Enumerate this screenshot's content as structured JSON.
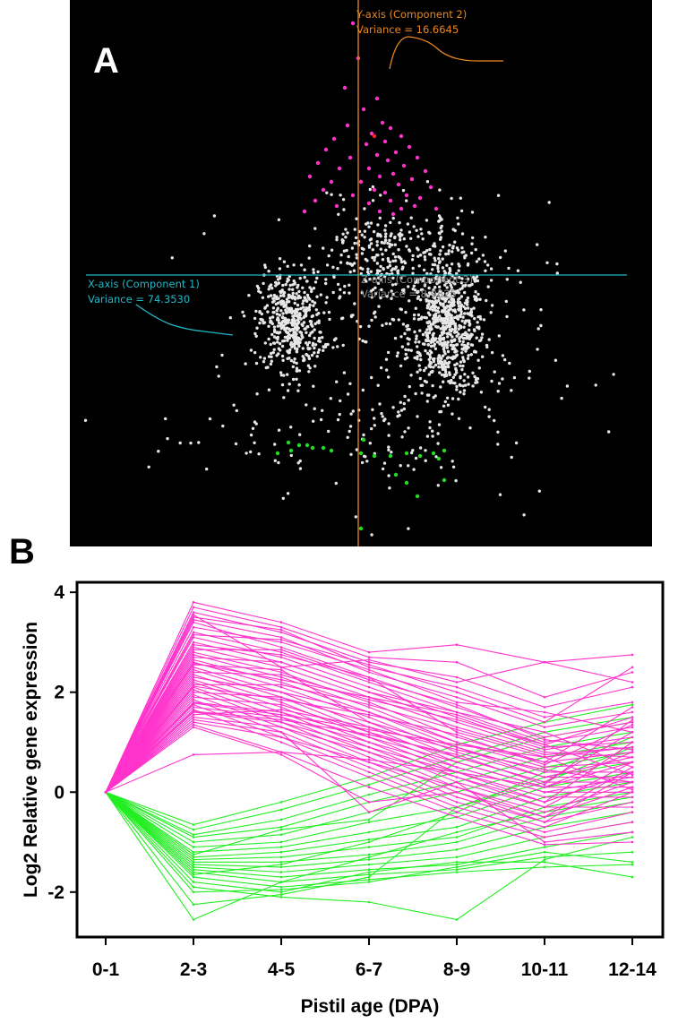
{
  "figure": {
    "panel_a_letter": "A",
    "panel_b_letter": "B"
  },
  "chart_data": [
    {
      "type": "scatter",
      "panel": "A",
      "y_axis_label": "Y-axis (Component 2)",
      "y_axis_variance": "Variance = 16.6645",
      "x_axis_label": "X-axis (Component 1)",
      "x_axis_variance": "Variance = 74.3530",
      "z_axis_label": "Z-axis (Component 3)",
      "z_axis_variance": "Variance = 8.9825",
      "background": "#000000",
      "colors": {
        "background_points": "#e6e6e6",
        "up_cluster": "#ff33cc",
        "down_cluster": "#22dd22",
        "highlight": "#ff2222",
        "y_axis": "#e8871e",
        "x_axis": "#22b8c8",
        "z_axis": "#888888"
      },
      "series": [
        {
          "name": "",
          "color": "#ff33cc",
          "points": [
            [
              -0.02,
              0.93
            ],
            [
              0.0,
              0.8
            ],
            [
              -0.05,
              0.69
            ],
            [
              0.07,
              0.65
            ],
            [
              0.02,
              0.61
            ],
            [
              0.09,
              0.56
            ],
            [
              -0.04,
              0.55
            ],
            [
              0.12,
              0.54
            ],
            [
              0.05,
              0.52
            ],
            [
              0.16,
              0.51
            ],
            [
              -0.09,
              0.5
            ],
            [
              0.1,
              0.49
            ],
            [
              0.03,
              0.48
            ],
            [
              0.19,
              0.47
            ],
            [
              -0.12,
              0.46
            ],
            [
              0.14,
              0.45
            ],
            [
              0.07,
              0.44
            ],
            [
              -0.03,
              0.43
            ],
            [
              0.22,
              0.43
            ],
            [
              0.11,
              0.42
            ],
            [
              -0.15,
              0.41
            ],
            [
              0.17,
              0.4
            ],
            [
              0.04,
              0.39
            ],
            [
              -0.07,
              0.39
            ],
            [
              0.25,
              0.38
            ],
            [
              0.13,
              0.37
            ],
            [
              0.08,
              0.36
            ],
            [
              -0.18,
              0.36
            ],
            [
              0.2,
              0.35
            ],
            [
              0.01,
              0.34
            ],
            [
              -0.1,
              0.34
            ],
            [
              0.15,
              0.33
            ],
            [
              0.27,
              0.32
            ],
            [
              0.06,
              0.31
            ],
            [
              -0.13,
              0.31
            ],
            [
              0.1,
              0.3
            ],
            [
              0.18,
              0.29
            ],
            [
              -0.02,
              0.29
            ],
            [
              0.23,
              0.28
            ],
            [
              -0.16,
              0.27
            ],
            [
              0.12,
              0.27
            ],
            [
              0.04,
              0.26
            ],
            [
              0.21,
              0.25
            ],
            [
              -0.08,
              0.25
            ],
            [
              0.16,
              0.24
            ],
            [
              0.29,
              0.24
            ],
            [
              -0.2,
              0.23
            ],
            [
              0.08,
              0.23
            ],
            [
              0.13,
              0.22
            ]
          ]
        },
        {
          "name": "",
          "color": "#22dd22",
          "points": [
            [
              -0.26,
              -0.63
            ],
            [
              -0.22,
              -0.64
            ],
            [
              -0.19,
              -0.64
            ],
            [
              -0.17,
              -0.65
            ],
            [
              -0.25,
              -0.66
            ],
            [
              -0.13,
              -0.65
            ],
            [
              -0.1,
              -0.66
            ],
            [
              0.02,
              -0.62
            ],
            [
              0.01,
              -0.67
            ],
            [
              0.06,
              -0.68
            ],
            [
              0.12,
              -0.68
            ],
            [
              0.18,
              -0.67
            ],
            [
              0.23,
              -0.68
            ],
            [
              0.28,
              -0.67
            ],
            [
              0.32,
              -0.66
            ],
            [
              0.3,
              -0.69
            ],
            [
              -0.3,
              -0.67
            ],
            [
              0.14,
              -0.75
            ],
            [
              0.18,
              -0.78
            ],
            [
              0.32,
              -0.77
            ],
            [
              0.22,
              -0.83
            ],
            [
              0.01,
              -0.95
            ]
          ]
        },
        {
          "name": "",
          "color": "#ff2222",
          "points": [
            [
              0.06,
              0.51
            ]
          ]
        }
      ]
    },
    {
      "type": "line",
      "panel": "B",
      "xlabel": "Pistil age (DPA)",
      "ylabel": "Log2 Relative gene expression",
      "categories": [
        "0-1",
        "2-3",
        "4-5",
        "6-7",
        "8-9",
        "10-11",
        "12-14"
      ],
      "ylim": [
        -2.9,
        4.2
      ],
      "yticks": [
        "-2",
        "0",
        "2",
        "4"
      ],
      "ytick_values": [
        -2,
        0,
        2,
        4
      ],
      "colors": {
        "up": "#ff33cc",
        "down": "#22ee22"
      },
      "up_series": [
        [
          0,
          3.8,
          3.4,
          2.8,
          2.95,
          2.6,
          2.75
        ],
        [
          0,
          3.7,
          3.3,
          2.7,
          2.6,
          1.9,
          2.4
        ],
        [
          0,
          3.6,
          3.2,
          2.6,
          2.3,
          1.7,
          2.1
        ],
        [
          0,
          3.5,
          3.25,
          2.5,
          2.1,
          1.5,
          1.8
        ],
        [
          0,
          3.45,
          3.1,
          2.4,
          1.9,
          1.3,
          1.6
        ],
        [
          0,
          3.4,
          2.9,
          2.3,
          1.7,
          1.1,
          1.4
        ],
        [
          0,
          3.3,
          3.0,
          2.45,
          1.8,
          1.6,
          1.2
        ],
        [
          0,
          3.2,
          2.8,
          2.2,
          1.6,
          1.0,
          1.3
        ],
        [
          0,
          3.1,
          2.7,
          2.1,
          1.5,
          0.9,
          1.0
        ],
        [
          0,
          3.0,
          2.6,
          2.0,
          1.4,
          0.85,
          1.1
        ],
        [
          0,
          2.95,
          2.75,
          2.3,
          1.2,
          0.7,
          0.9
        ],
        [
          0,
          2.9,
          2.5,
          1.9,
          1.3,
          0.8,
          0.7
        ],
        [
          0,
          2.8,
          2.4,
          1.8,
          1.1,
          0.6,
          0.8
        ],
        [
          0,
          2.75,
          2.3,
          1.7,
          1.0,
          0.5,
          0.6
        ],
        [
          0,
          2.7,
          2.6,
          2.0,
          1.6,
          1.2,
          0.5
        ],
        [
          0,
          2.65,
          2.2,
          1.6,
          0.9,
          0.4,
          0.4
        ],
        [
          0,
          2.6,
          2.1,
          1.5,
          0.8,
          0.3,
          0.3
        ],
        [
          0,
          2.55,
          2.45,
          1.4,
          0.7,
          0.2,
          0.2
        ],
        [
          0,
          2.5,
          2.0,
          1.3,
          0.6,
          0.1,
          0.1
        ],
        [
          0,
          2.45,
          1.9,
          1.2,
          0.5,
          0.0,
          0.0
        ],
        [
          0,
          2.4,
          2.35,
          1.85,
          1.45,
          0.95,
          1.5
        ],
        [
          0,
          2.35,
          1.8,
          1.1,
          0.4,
          -0.1,
          -0.1
        ],
        [
          0,
          2.3,
          2.0,
          1.6,
          1.0,
          0.6,
          1.7
        ],
        [
          0,
          2.25,
          1.7,
          1.0,
          0.3,
          -0.2,
          0.4
        ],
        [
          0,
          2.2,
          1.6,
          0.9,
          0.2,
          -0.3,
          0.6
        ],
        [
          0,
          2.15,
          2.15,
          1.75,
          1.25,
          0.75,
          0.9
        ],
        [
          0,
          2.1,
          1.5,
          0.8,
          0.1,
          -0.4,
          0.2
        ],
        [
          0,
          2.05,
          1.4,
          0.7,
          0.0,
          -0.5,
          0.5
        ],
        [
          0,
          2.0,
          1.9,
          1.4,
          0.9,
          0.3,
          0.7
        ],
        [
          0,
          1.95,
          1.3,
          0.6,
          -0.1,
          -0.6,
          -0.2
        ],
        [
          0,
          1.9,
          1.75,
          1.2,
          0.7,
          0.2,
          1.2
        ],
        [
          0,
          1.85,
          1.2,
          0.5,
          -0.2,
          -0.7,
          0.0
        ],
        [
          0,
          1.8,
          1.6,
          1.1,
          0.6,
          0.1,
          0.8
        ],
        [
          0,
          1.75,
          1.1,
          0.4,
          -0.3,
          -0.8,
          -0.4
        ],
        [
          0,
          1.7,
          1.5,
          1.0,
          0.5,
          0.0,
          0.3
        ],
        [
          0,
          1.65,
          1.0,
          0.3,
          -0.4,
          -0.9,
          -0.6
        ],
        [
          0,
          1.6,
          1.4,
          0.9,
          0.4,
          -0.2,
          1.0
        ],
        [
          0,
          1.55,
          1.65,
          1.3,
          0.85,
          0.45,
          0.2
        ],
        [
          0,
          1.5,
          1.3,
          0.8,
          0.3,
          -0.3,
          -0.3
        ],
        [
          0,
          1.45,
          1.2,
          -0.4,
          0.2,
          -1.0,
          -0.8
        ],
        [
          0,
          1.4,
          1.1,
          0.6,
          0.1,
          -0.5,
          0.1
        ],
        [
          0,
          1.35,
          0.8,
          0.1,
          -0.5,
          -1.05,
          -1.0
        ],
        [
          0,
          1.3,
          0.75,
          -0.2,
          0.0,
          -0.6,
          0.4
        ],
        [
          0,
          0.75,
          0.8,
          0.65,
          0.4,
          0.1,
          0.6
        ],
        [
          0,
          3.55,
          2.5,
          2.65,
          2.2,
          2.6,
          2.2
        ],
        [
          0,
          3.15,
          3.05,
          2.55,
          2.0,
          1.4,
          2.5
        ],
        [
          0,
          2.85,
          2.85,
          2.25,
          1.75,
          1.05,
          0.85
        ],
        [
          0,
          2.58,
          2.25,
          1.9,
          1.55,
          0.95,
          0.35
        ],
        [
          0,
          2.12,
          1.85,
          1.55,
          1.15,
          0.55,
          1.35
        ],
        [
          0,
          1.78,
          1.55,
          1.25,
          0.95,
          0.7,
          0.05
        ],
        [
          0,
          1.62,
          1.45,
          1.15,
          0.75,
          0.15,
          1.45
        ]
      ],
      "down_series": [
        [
          0,
          -0.65,
          -0.2,
          0.3,
          0.95,
          1.4,
          1.75
        ],
        [
          0,
          -0.75,
          -0.35,
          0.15,
          0.7,
          1.2,
          1.5
        ],
        [
          0,
          -0.85,
          -0.55,
          -0.05,
          0.4,
          0.9,
          1.2
        ],
        [
          0,
          -0.9,
          -0.7,
          -0.2,
          0.2,
          0.7,
          1.0
        ],
        [
          0,
          -1.0,
          -0.85,
          -0.4,
          0.0,
          0.5,
          0.8
        ],
        [
          0,
          -1.1,
          -1.0,
          -0.6,
          -0.3,
          0.3,
          0.6
        ],
        [
          0,
          -1.2,
          -1.1,
          -0.8,
          -0.5,
          0.1,
          0.4
        ],
        [
          0,
          -1.3,
          -1.2,
          -0.95,
          -0.7,
          -0.1,
          0.2
        ],
        [
          0,
          -1.35,
          -1.3,
          -1.1,
          -0.9,
          -0.3,
          0.0
        ],
        [
          0,
          -1.4,
          -1.4,
          -1.25,
          -1.0,
          -0.5,
          -0.2
        ],
        [
          0,
          -1.45,
          -1.5,
          -1.35,
          -1.15,
          -0.7,
          -0.4
        ],
        [
          0,
          -1.5,
          -1.6,
          -1.45,
          -1.3,
          -0.9,
          -0.6
        ],
        [
          0,
          -1.55,
          -1.7,
          -1.55,
          -1.45,
          -1.1,
          -0.8
        ],
        [
          0,
          -1.6,
          -1.8,
          -1.65,
          -1.55,
          -1.3,
          -1.2
        ],
        [
          0,
          -1.7,
          -1.9,
          -1.75,
          -1.6,
          -1.5,
          -1.45
        ],
        [
          0,
          -1.8,
          -2.0,
          -1.6,
          -1.4,
          -1.4,
          -1.7
        ],
        [
          0,
          -1.9,
          -2.1,
          -2.2,
          -2.55,
          -1.35,
          -0.9
        ],
        [
          0,
          -2.0,
          -1.95,
          -1.8,
          -1.5,
          -1.2,
          -1.4
        ],
        [
          0,
          -2.25,
          -2.05,
          -1.7,
          -0.3,
          0.2,
          0.9
        ],
        [
          0,
          -2.55,
          -1.8,
          -1.3,
          -0.8,
          -0.4,
          -0.1
        ],
        [
          0,
          -1.25,
          -0.75,
          -0.55,
          0.6,
          1.1,
          1.4
        ],
        [
          0,
          -1.65,
          -1.45,
          -1.0,
          -0.4,
          0.4,
          1.1
        ]
      ]
    }
  ]
}
